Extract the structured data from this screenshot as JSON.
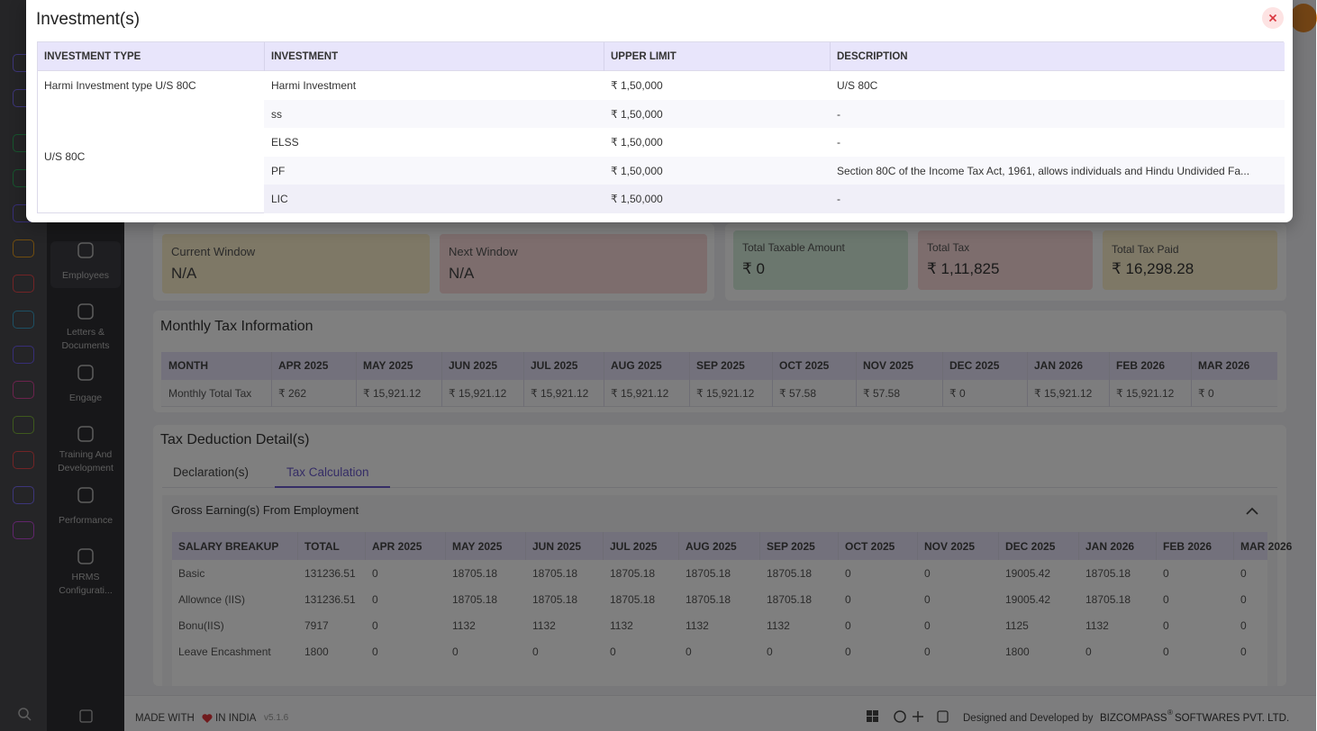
{
  "modal": {
    "title": "Investment(s)",
    "columns": [
      "INVESTMENT TYPE",
      "INVESTMENT",
      "UPPER LIMIT",
      "DESCRIPTION"
    ],
    "groups": [
      {
        "type": "Harmi Investment type U/S 80C",
        "items": [
          {
            "investment": "Harmi Investment",
            "limit": "₹ 1,50,000",
            "description": "U/S 80C"
          }
        ]
      },
      {
        "type": "U/S 80C",
        "items": [
          {
            "investment": "ss",
            "limit": "₹ 1,50,000",
            "description": "-"
          },
          {
            "investment": "ELSS",
            "limit": "₹ 1,50,000",
            "description": "-"
          },
          {
            "investment": "PF",
            "limit": "₹ 1,50,000",
            "description": "Section 80C of the Income Tax Act, 1961, allows individuals and Hindu Undivided Fa..."
          },
          {
            "investment": "LIC",
            "limit": "₹ 1,50,000",
            "description": "-"
          }
        ]
      }
    ]
  },
  "sidebar": {
    "items": [
      "Employees",
      "Letters & Documents",
      "Engage",
      "Training And Development",
      "Performance",
      "HRMS Configurati..."
    ]
  },
  "summary": {
    "windows": [
      {
        "label": "Current Window",
        "value": "N/A"
      },
      {
        "label": "Next Window",
        "value": "N/A"
      }
    ],
    "totals": [
      {
        "label": "Total Taxable Amount",
        "value": "₹ 0"
      },
      {
        "label": "Total Tax",
        "value": "₹ 1,11,825"
      },
      {
        "label": "Total Tax Paid",
        "value": "₹ 16,298.28"
      }
    ]
  },
  "monthly": {
    "title": "Monthly Tax Information",
    "header": [
      "MONTH",
      "APR 2025",
      "MAY 2025",
      "JUN 2025",
      "JUL 2025",
      "AUG 2025",
      "SEP 2025",
      "OCT 2025",
      "NOV 2025",
      "DEC 2025",
      "JAN 2026",
      "FEB 2026",
      "MAR 2026"
    ],
    "row": [
      "Monthly Total Tax",
      "₹ 262",
      "₹ 15,921.12",
      "₹ 15,921.12",
      "₹ 15,921.12",
      "₹ 15,921.12",
      "₹ 15,921.12",
      "₹ 57.58",
      "₹ 57.58",
      "₹ 0",
      "₹ 15,921.12",
      "₹ 15,921.12",
      "₹ 0"
    ]
  },
  "deduction": {
    "title": "Tax Deduction Detail(s)",
    "tabs": [
      "Declaration(s)",
      "Tax Calculation"
    ],
    "section": "Gross Earning(s) From Employment",
    "header": [
      "SALARY BREAKUP",
      "TOTAL",
      "APR 2025",
      "MAY 2025",
      "JUN 2025",
      "JUL 2025",
      "AUG 2025",
      "SEP 2025",
      "OCT 2025",
      "NOV 2025",
      "DEC 2025",
      "JAN 2026",
      "FEB 2026",
      "MAR 2026"
    ],
    "rows": [
      [
        "Basic",
        "131236.51",
        "0",
        "18705.18",
        "18705.18",
        "18705.18",
        "18705.18",
        "18705.18",
        "0",
        "0",
        "19005.42",
        "18705.18",
        "0",
        "0"
      ],
      [
        "Allownce (IIS)",
        "131236.51",
        "0",
        "18705.18",
        "18705.18",
        "18705.18",
        "18705.18",
        "18705.18",
        "0",
        "0",
        "19005.42",
        "18705.18",
        "0",
        "0"
      ],
      [
        "Bonu(IIS)",
        "7917",
        "0",
        "1132",
        "1132",
        "1132",
        "1132",
        "1132",
        "0",
        "0",
        "1125",
        "1132",
        "0",
        "0"
      ],
      [
        "Leave Encashment",
        "1800",
        "0",
        "0",
        "0",
        "0",
        "0",
        "0",
        "0",
        "0",
        "1800",
        "0",
        "0",
        "0"
      ]
    ]
  },
  "footer": {
    "made": "MADE WITH",
    "india": "IN INDIA",
    "version": "v5.1.6",
    "designed": "Designed and Developed by",
    "brand": "BIZCOMPASS",
    "reg": "®",
    "company": "SOFTWARES PVT. LTD."
  }
}
